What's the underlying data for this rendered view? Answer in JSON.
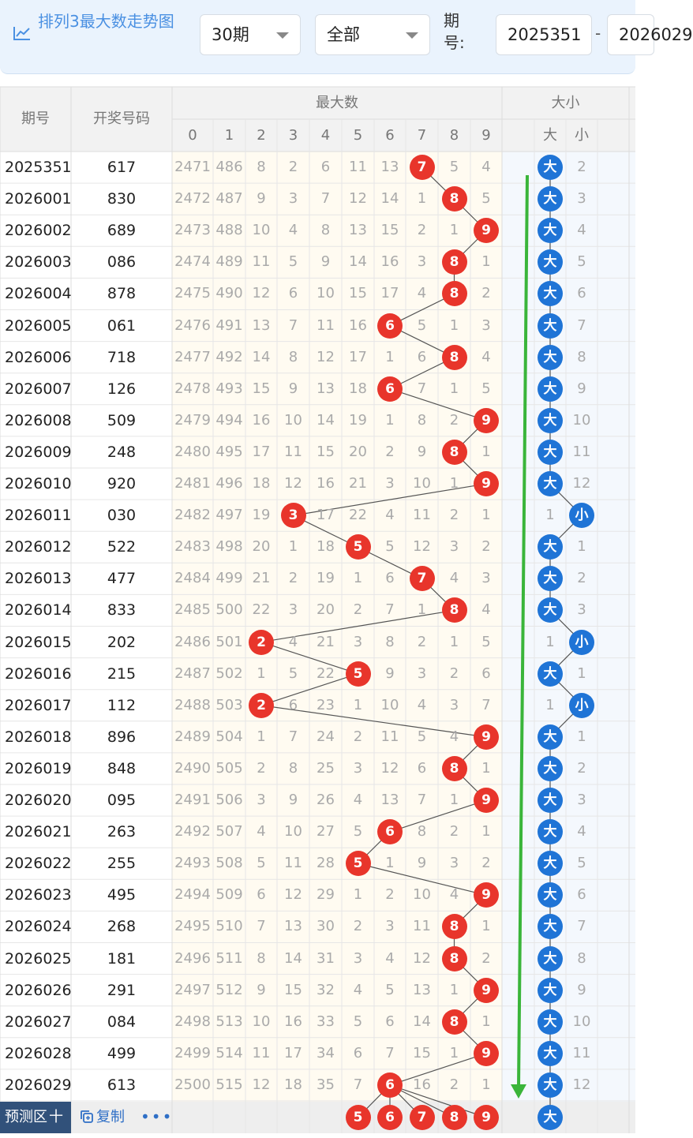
{
  "header": {
    "title": "排列3最大数走势图",
    "period_select": "30期",
    "filter_select": "全部",
    "issue_label": "期号:",
    "issue_from": "2025351",
    "issue_to": "2026029",
    "range_sep": "-"
  },
  "table": {
    "col_issue": "期号",
    "col_number": "开奖号码",
    "group_max": "最大数",
    "group_size": "大小",
    "digits": [
      "0",
      "1",
      "2",
      "3",
      "4",
      "5",
      "6",
      "7",
      "8",
      "9"
    ],
    "size_labels": [
      "大",
      "小"
    ],
    "rows": [
      {
        "issue": "2025351",
        "num": "617",
        "max": 7,
        "miss": [
          "2471",
          "486",
          "8",
          "2",
          "6",
          "11",
          "13",
          "",
          "5",
          "4"
        ],
        "size": "大",
        "size_miss": "2"
      },
      {
        "issue": "2026001",
        "num": "830",
        "max": 8,
        "miss": [
          "2472",
          "487",
          "9",
          "3",
          "7",
          "12",
          "14",
          "1",
          "",
          "5"
        ],
        "size": "大",
        "size_miss": "3"
      },
      {
        "issue": "2026002",
        "num": "689",
        "max": 9,
        "miss": [
          "2473",
          "488",
          "10",
          "4",
          "8",
          "13",
          "15",
          "2",
          "1",
          ""
        ],
        "size": "大",
        "size_miss": "4"
      },
      {
        "issue": "2026003",
        "num": "086",
        "max": 8,
        "miss": [
          "2474",
          "489",
          "11",
          "5",
          "9",
          "14",
          "16",
          "3",
          "",
          "1"
        ],
        "size": "大",
        "size_miss": "5"
      },
      {
        "issue": "2026004",
        "num": "878",
        "max": 8,
        "miss": [
          "2475",
          "490",
          "12",
          "6",
          "10",
          "15",
          "17",
          "4",
          "",
          "2"
        ],
        "size": "大",
        "size_miss": "6"
      },
      {
        "issue": "2026005",
        "num": "061",
        "max": 6,
        "miss": [
          "2476",
          "491",
          "13",
          "7",
          "11",
          "16",
          "",
          "5",
          "1",
          "3"
        ],
        "size": "大",
        "size_miss": "7"
      },
      {
        "issue": "2026006",
        "num": "718",
        "max": 8,
        "miss": [
          "2477",
          "492",
          "14",
          "8",
          "12",
          "17",
          "1",
          "6",
          "",
          "4"
        ],
        "size": "大",
        "size_miss": "8"
      },
      {
        "issue": "2026007",
        "num": "126",
        "max": 6,
        "miss": [
          "2478",
          "493",
          "15",
          "9",
          "13",
          "18",
          "",
          "7",
          "1",
          "5"
        ],
        "size": "大",
        "size_miss": "9"
      },
      {
        "issue": "2026008",
        "num": "509",
        "max": 9,
        "miss": [
          "2479",
          "494",
          "16",
          "10",
          "14",
          "19",
          "1",
          "8",
          "2",
          ""
        ],
        "size": "大",
        "size_miss": "10"
      },
      {
        "issue": "2026009",
        "num": "248",
        "max": 8,
        "miss": [
          "2480",
          "495",
          "17",
          "11",
          "15",
          "20",
          "2",
          "9",
          "",
          "1"
        ],
        "size": "大",
        "size_miss": "11"
      },
      {
        "issue": "2026010",
        "num": "920",
        "max": 9,
        "miss": [
          "2481",
          "496",
          "18",
          "12",
          "16",
          "21",
          "3",
          "10",
          "1",
          ""
        ],
        "size": "大",
        "size_miss": "12"
      },
      {
        "issue": "2026011",
        "num": "030",
        "max": 3,
        "miss": [
          "2482",
          "497",
          "19",
          "",
          "17",
          "22",
          "4",
          "11",
          "2",
          "1"
        ],
        "size": "小",
        "size_miss": "1"
      },
      {
        "issue": "2026012",
        "num": "522",
        "max": 5,
        "miss": [
          "2483",
          "498",
          "20",
          "1",
          "18",
          "",
          "5",
          "12",
          "3",
          "2"
        ],
        "size": "大",
        "size_miss": "1"
      },
      {
        "issue": "2026013",
        "num": "477",
        "max": 7,
        "miss": [
          "2484",
          "499",
          "21",
          "2",
          "19",
          "1",
          "6",
          "",
          "4",
          "3"
        ],
        "size": "大",
        "size_miss": "2"
      },
      {
        "issue": "2026014",
        "num": "833",
        "max": 8,
        "miss": [
          "2485",
          "500",
          "22",
          "3",
          "20",
          "2",
          "7",
          "1",
          "",
          "4"
        ],
        "size": "大",
        "size_miss": "3"
      },
      {
        "issue": "2026015",
        "num": "202",
        "max": 2,
        "miss": [
          "2486",
          "501",
          "",
          "4",
          "21",
          "3",
          "8",
          "2",
          "1",
          "5"
        ],
        "size": "小",
        "size_miss": "1"
      },
      {
        "issue": "2026016",
        "num": "215",
        "max": 5,
        "miss": [
          "2487",
          "502",
          "1",
          "5",
          "22",
          "",
          "9",
          "3",
          "2",
          "6"
        ],
        "size": "大",
        "size_miss": "1"
      },
      {
        "issue": "2026017",
        "num": "112",
        "max": 2,
        "miss": [
          "2488",
          "503",
          "",
          "6",
          "23",
          "1",
          "10",
          "4",
          "3",
          "7"
        ],
        "size": "小",
        "size_miss": "1"
      },
      {
        "issue": "2026018",
        "num": "896",
        "max": 9,
        "miss": [
          "2489",
          "504",
          "1",
          "7",
          "24",
          "2",
          "11",
          "5",
          "4",
          ""
        ],
        "size": "大",
        "size_miss": "1"
      },
      {
        "issue": "2026019",
        "num": "848",
        "max": 8,
        "miss": [
          "2490",
          "505",
          "2",
          "8",
          "25",
          "3",
          "12",
          "6",
          "",
          "1"
        ],
        "size": "大",
        "size_miss": "2"
      },
      {
        "issue": "2026020",
        "num": "095",
        "max": 9,
        "miss": [
          "2491",
          "506",
          "3",
          "9",
          "26",
          "4",
          "13",
          "7",
          "1",
          ""
        ],
        "size": "大",
        "size_miss": "3"
      },
      {
        "issue": "2026021",
        "num": "263",
        "max": 6,
        "miss": [
          "2492",
          "507",
          "4",
          "10",
          "27",
          "5",
          "",
          "8",
          "2",
          "1"
        ],
        "size": "大",
        "size_miss": "4"
      },
      {
        "issue": "2026022",
        "num": "255",
        "max": 5,
        "miss": [
          "2493",
          "508",
          "5",
          "11",
          "28",
          "",
          "1",
          "9",
          "3",
          "2"
        ],
        "size": "大",
        "size_miss": "5"
      },
      {
        "issue": "2026023",
        "num": "495",
        "max": 9,
        "miss": [
          "2494",
          "509",
          "6",
          "12",
          "29",
          "1",
          "2",
          "10",
          "4",
          ""
        ],
        "size": "大",
        "size_miss": "6"
      },
      {
        "issue": "2026024",
        "num": "268",
        "max": 8,
        "miss": [
          "2495",
          "510",
          "7",
          "13",
          "30",
          "2",
          "3",
          "11",
          "",
          "1"
        ],
        "size": "大",
        "size_miss": "7"
      },
      {
        "issue": "2026025",
        "num": "181",
        "max": 8,
        "miss": [
          "2496",
          "511",
          "8",
          "14",
          "31",
          "3",
          "4",
          "12",
          "",
          "2"
        ],
        "size": "大",
        "size_miss": "8"
      },
      {
        "issue": "2026026",
        "num": "291",
        "max": 9,
        "miss": [
          "2497",
          "512",
          "9",
          "15",
          "32",
          "4",
          "5",
          "13",
          "1",
          ""
        ],
        "size": "大",
        "size_miss": "9"
      },
      {
        "issue": "2026027",
        "num": "084",
        "max": 8,
        "miss": [
          "2498",
          "513",
          "10",
          "16",
          "33",
          "5",
          "6",
          "14",
          "",
          "1"
        ],
        "size": "大",
        "size_miss": "10"
      },
      {
        "issue": "2026028",
        "num": "499",
        "max": 9,
        "miss": [
          "2499",
          "514",
          "11",
          "17",
          "34",
          "6",
          "7",
          "15",
          "1",
          ""
        ],
        "size": "大",
        "size_miss": "11"
      },
      {
        "issue": "2026029",
        "num": "613",
        "max": 6,
        "miss": [
          "2500",
          "515",
          "12",
          "18",
          "35",
          "7",
          "",
          "16",
          "2",
          "1"
        ],
        "size": "大",
        "size_miss": "12"
      }
    ],
    "predict": {
      "label": "预测区",
      "plus": "十",
      "copy": "复制",
      "more": "•••",
      "balls": [
        "5",
        "6",
        "7",
        "8",
        "9"
      ],
      "size": "大"
    }
  },
  "colors": {
    "red_ball": "#e8352b",
    "blue_ball": "#1f74d6",
    "trend_arrow": "#3ab53a",
    "footer_bg": "#31517a"
  }
}
